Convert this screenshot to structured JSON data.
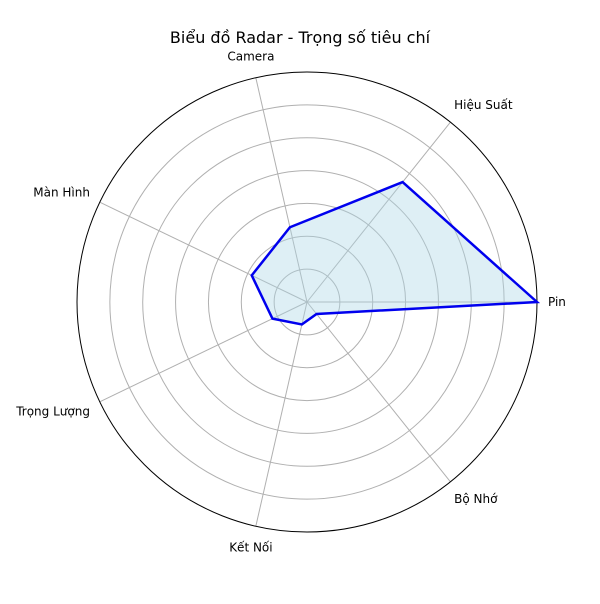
{
  "chart_data": {
    "type": "radar",
    "title": "Biểu đồ Radar - Trọng số tiêu chí",
    "categories": [
      "Pin",
      "Hiệu Suất",
      "Camera",
      "Màn Hình",
      "Trọng Lượng",
      "Kết Nối",
      "Bộ Nhớ"
    ],
    "series": [
      {
        "values": [
          0.3,
          0.2,
          0.1,
          0.08,
          0.05,
          0.03,
          0.02
        ]
      }
    ],
    "rlim": [
      0,
      0.3
    ],
    "rgrid_count": 7,
    "grid": true,
    "show_radial_tick_labels": false,
    "colors": {
      "line": "#0000ee",
      "fill": "#add8e6",
      "grid": "#b0b0b0",
      "frame": "#000000"
    }
  }
}
